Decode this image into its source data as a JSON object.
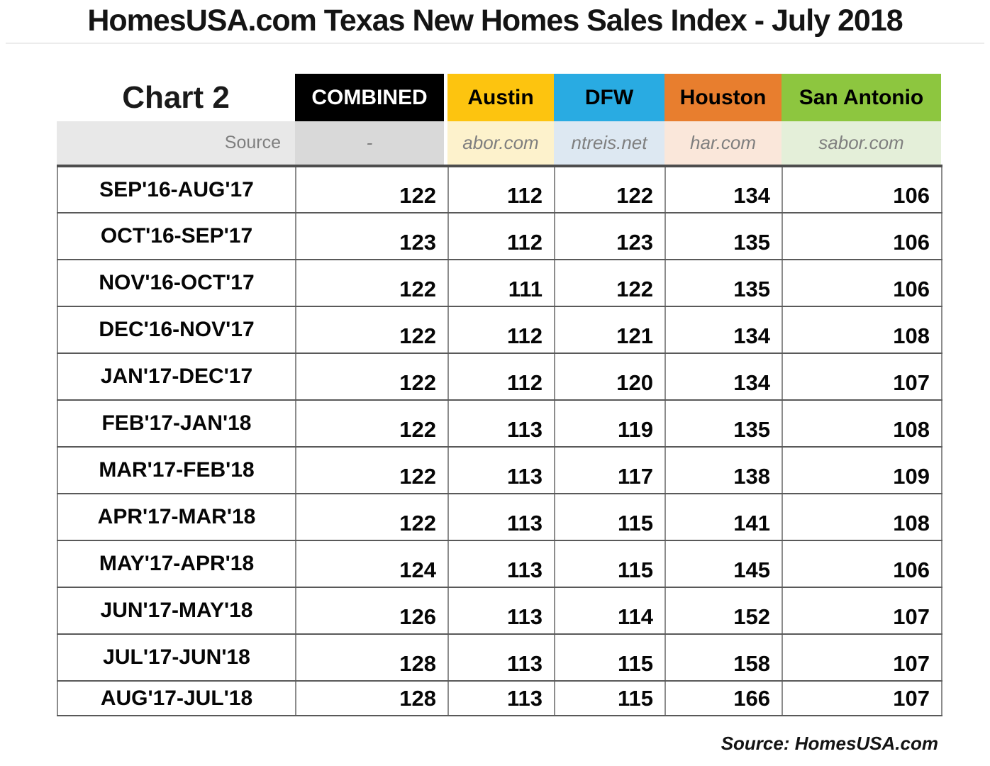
{
  "title": "HomesUSA.com Texas New Homes Sales Index - July 2018",
  "chart_label": "Chart 2",
  "source_row_label": "Source",
  "footer": "Source: HomesUSA.com",
  "colors": {
    "combined": "#000000",
    "austin": "#fdc40f",
    "dfw": "#29abe2",
    "houston": "#e87e2e",
    "san_antonio": "#8dc63f",
    "source_band": "#e8e8e8",
    "muted_text": "#7f7f7f"
  },
  "chart_data": {
    "type": "table",
    "title": "HomesUSA.com Texas New Homes Sales Index - July 2018",
    "categories": [
      "SEP'16-AUG'17",
      "OCT'16-SEP'17",
      "NOV'16-OCT'17",
      "DEC'16-NOV'17",
      "JAN'17-DEC'17",
      "FEB'17-JAN'18",
      "MAR'17-FEB'18",
      "APR'17-MAR'18",
      "MAY'17-APR'18",
      "JUN'17-MAY'18",
      "JUL'17-JUN'18",
      "AUG'17-JUL'18"
    ],
    "series": [
      {
        "name": "COMBINED",
        "source": "-",
        "color": "#000000",
        "text_color": "#ffffff",
        "tint": "#d9d9d9",
        "values": [
          122,
          123,
          122,
          122,
          122,
          122,
          122,
          122,
          124,
          126,
          128,
          128
        ]
      },
      {
        "name": "Austin",
        "source": "abor.com",
        "color": "#fdc40f",
        "text_color": "#000000",
        "tint": "#fdf2cc",
        "values": [
          112,
          112,
          111,
          112,
          112,
          113,
          113,
          113,
          113,
          113,
          113,
          113
        ]
      },
      {
        "name": "DFW",
        "source": "ntreis.net",
        "color": "#29abe2",
        "text_color": "#000000",
        "tint": "#dde8f2",
        "values": [
          122,
          123,
          122,
          121,
          120,
          119,
          117,
          115,
          115,
          114,
          115,
          115
        ]
      },
      {
        "name": "Houston",
        "source": "har.com",
        "color": "#e87e2e",
        "text_color": "#000000",
        "tint": "#fae7da",
        "values": [
          134,
          135,
          135,
          134,
          134,
          135,
          138,
          141,
          145,
          152,
          158,
          166
        ]
      },
      {
        "name": "San Antonio",
        "source": "sabor.com",
        "color": "#8dc63f",
        "text_color": "#000000",
        "tint": "#e4efd9",
        "values": [
          106,
          106,
          106,
          108,
          107,
          108,
          109,
          108,
          106,
          107,
          107,
          107
        ]
      }
    ]
  }
}
